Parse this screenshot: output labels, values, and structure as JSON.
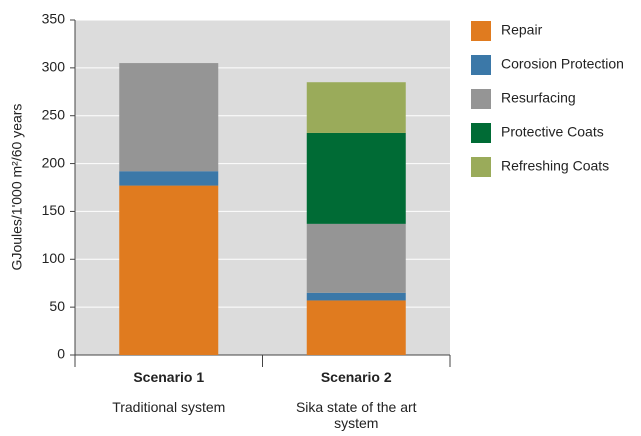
{
  "chart_data": {
    "type": "stacked_bar",
    "y_label": "GJoules/1'000 m²/60 years",
    "categories": [
      "Scenario 1",
      "Scenario 2"
    ],
    "subcategories": [
      "Traditional system",
      "Sika state of the art system"
    ],
    "series": [
      {
        "name": "Repair",
        "color": "#e07b1f",
        "values": [
          177,
          57
        ]
      },
      {
        "name": "Corosion Protection",
        "color": "#3b78a8",
        "values": [
          15,
          8
        ]
      },
      {
        "name": "Resurfacing",
        "color": "#959595",
        "values": [
          113,
          72
        ]
      },
      {
        "name": "Protective Coats",
        "color": "#006b35",
        "values": [
          null,
          95
        ]
      },
      {
        "name": "Refreshing Coats",
        "color": "#9aab5a",
        "values": [
          null,
          53
        ]
      }
    ],
    "ylim": [
      0,
      350
    ],
    "yticks": [
      0,
      50,
      100,
      150,
      200,
      250,
      300,
      350
    ],
    "grid": true,
    "legend": "right"
  }
}
